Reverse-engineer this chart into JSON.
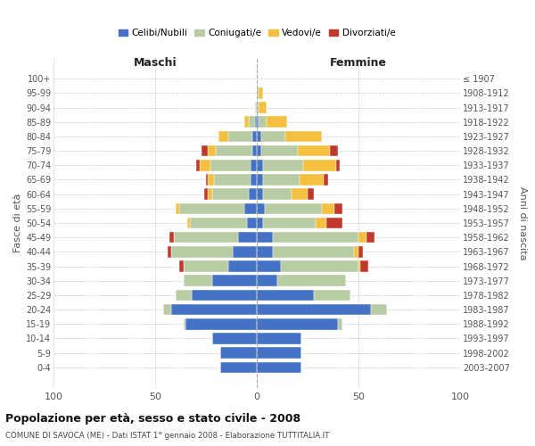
{
  "age_groups": [
    "0-4",
    "5-9",
    "10-14",
    "15-19",
    "20-24",
    "25-29",
    "30-34",
    "35-39",
    "40-44",
    "45-49",
    "50-54",
    "55-59",
    "60-64",
    "65-69",
    "70-74",
    "75-79",
    "80-84",
    "85-89",
    "90-94",
    "95-99",
    "100+"
  ],
  "birth_years": [
    "2003-2007",
    "1998-2002",
    "1993-1997",
    "1988-1992",
    "1983-1987",
    "1978-1982",
    "1973-1977",
    "1968-1972",
    "1963-1967",
    "1958-1962",
    "1953-1957",
    "1948-1952",
    "1943-1947",
    "1938-1942",
    "1933-1937",
    "1928-1932",
    "1923-1927",
    "1918-1922",
    "1913-1917",
    "1908-1912",
    "≤ 1907"
  ],
  "males": {
    "celibi": [
      18,
      18,
      22,
      35,
      42,
      32,
      22,
      14,
      12,
      9,
      5,
      6,
      4,
      3,
      3,
      2,
      2,
      1,
      0,
      0,
      0
    ],
    "coniugati": [
      0,
      0,
      0,
      1,
      4,
      8,
      14,
      22,
      30,
      32,
      28,
      32,
      18,
      18,
      20,
      18,
      12,
      3,
      1,
      0,
      0
    ],
    "vedovi": [
      0,
      0,
      0,
      0,
      0,
      0,
      0,
      0,
      0,
      0,
      1,
      2,
      2,
      3,
      5,
      4,
      5,
      2,
      0,
      0,
      0
    ],
    "divorziati": [
      0,
      0,
      0,
      0,
      0,
      0,
      0,
      2,
      2,
      2,
      0,
      0,
      2,
      1,
      2,
      3,
      0,
      0,
      0,
      0,
      0
    ]
  },
  "females": {
    "nubili": [
      22,
      22,
      22,
      40,
      56,
      28,
      10,
      12,
      8,
      8,
      3,
      4,
      3,
      3,
      3,
      2,
      2,
      1,
      0,
      0,
      0
    ],
    "coniugate": [
      0,
      0,
      0,
      2,
      8,
      18,
      34,
      38,
      40,
      42,
      26,
      28,
      14,
      18,
      20,
      18,
      12,
      4,
      1,
      1,
      0
    ],
    "vedove": [
      0,
      0,
      0,
      0,
      0,
      0,
      0,
      1,
      2,
      4,
      5,
      6,
      8,
      12,
      16,
      16,
      18,
      10,
      4,
      2,
      0
    ],
    "divorziate": [
      0,
      0,
      0,
      0,
      0,
      0,
      0,
      4,
      2,
      4,
      8,
      4,
      3,
      2,
      2,
      4,
      0,
      0,
      0,
      0,
      0
    ]
  },
  "colors": {
    "celibi": "#4472c4",
    "coniugati": "#b8cca4",
    "vedovi": "#f5c040",
    "divorziati": "#c0392b"
  },
  "title": "Popolazione per età, sesso e stato civile - 2008",
  "subtitle": "COMUNE DI SAVOCA (ME) - Dati ISTAT 1° gennaio 2008 - Elaborazione TUTTITALIA.IT",
  "xlabel_left": "Maschi",
  "xlabel_right": "Femmine",
  "ylabel_left": "Fasce di età",
  "ylabel_right": "Anni di nascita",
  "xlim": 100,
  "background_color": "#ffffff",
  "grid_color": "#cccccc"
}
